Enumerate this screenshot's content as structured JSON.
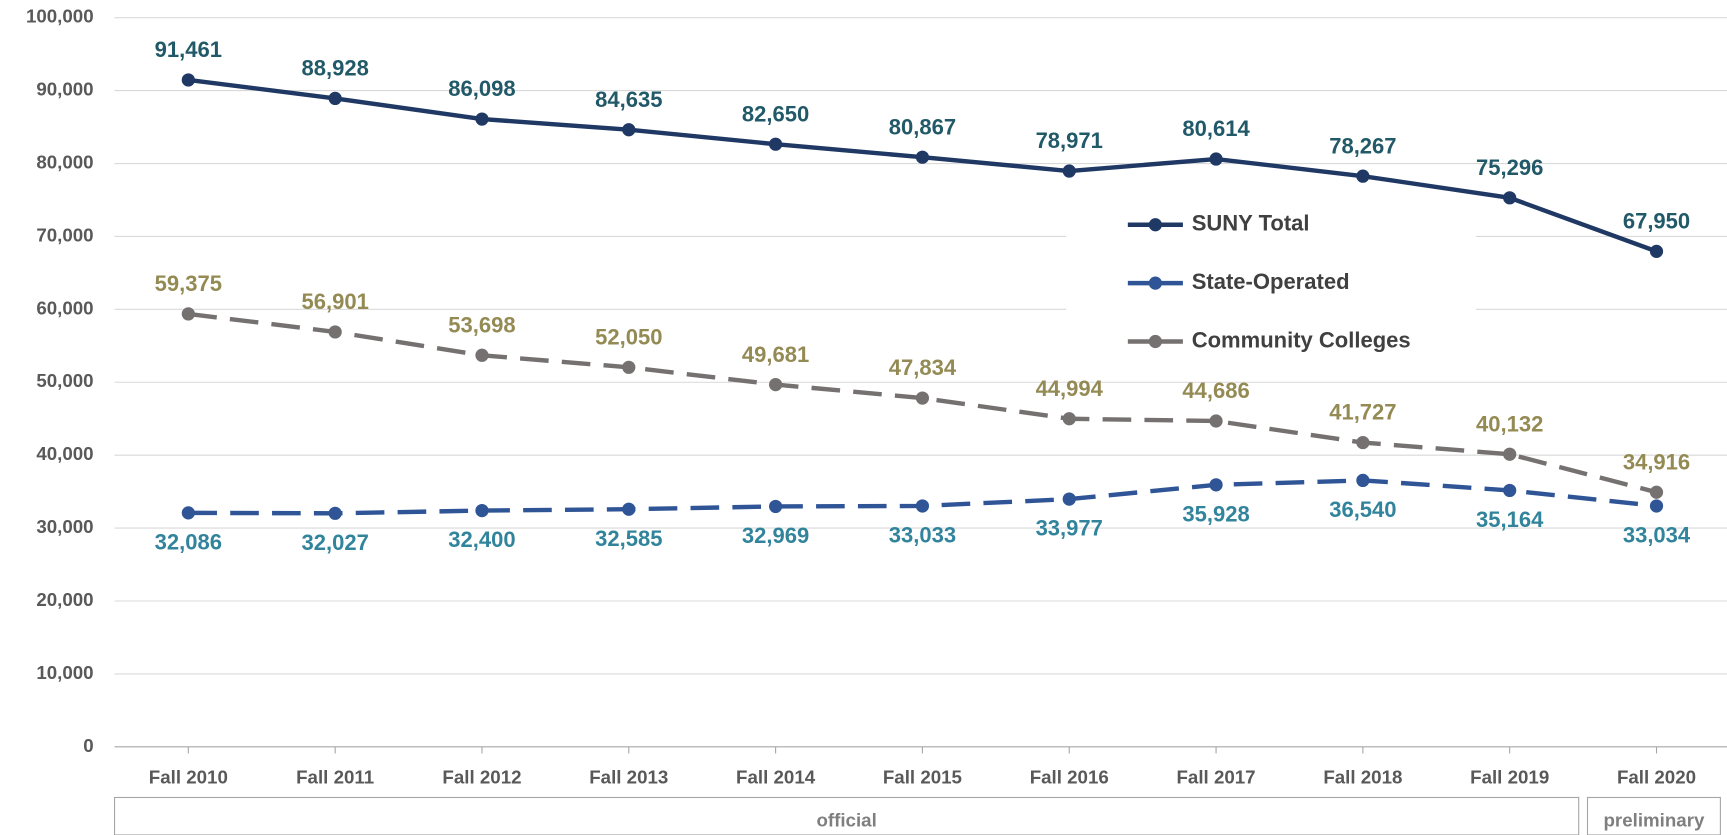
{
  "chart_data": {
    "type": "line",
    "categories": [
      "Fall 2010",
      "Fall 2011",
      "Fall 2012",
      "Fall 2013",
      "Fall 2014",
      "Fall 2015",
      "Fall 2016",
      "Fall 2017",
      "Fall 2018",
      "Fall 2019",
      "Fall 2020"
    ],
    "x_groups": [
      {
        "label": "official",
        "count": 10
      },
      {
        "label": "preliminary",
        "count": 1
      }
    ],
    "series": [
      {
        "name": "SUNY Total",
        "color": "#1f3864",
        "label_color": "#215968",
        "dash": "solid",
        "label_position": "above",
        "values": [
          91461,
          88928,
          86098,
          84635,
          82650,
          80867,
          78971,
          80614,
          78267,
          75296,
          67950
        ],
        "value_labels": [
          "91,461",
          "88,928",
          "86,098",
          "84,635",
          "82,650",
          "80,867",
          "78,971",
          "80,614",
          "78,267",
          "75,296",
          "67,950"
        ]
      },
      {
        "name": "State-Operated",
        "color": "#2f5597",
        "label_color": "#31849b",
        "dash": "dashed",
        "label_position": "below",
        "values": [
          32086,
          32027,
          32400,
          32585,
          32969,
          33033,
          33977,
          35928,
          36540,
          35164,
          33034
        ],
        "value_labels": [
          "32,086",
          "32,027",
          "32,400",
          "32,585",
          "32,969",
          "33,033",
          "33,977",
          "35,928",
          "36,540",
          "35,164",
          "33,034"
        ]
      },
      {
        "name": "Community Colleges",
        "color": "#767171",
        "label_color": "#948a54",
        "dash": "dashed",
        "label_position": "above",
        "values": [
          59375,
          56901,
          53698,
          52050,
          49681,
          47834,
          44994,
          44686,
          41727,
          40132,
          34916
        ],
        "value_labels": [
          "59,375",
          "56,901",
          "53,698",
          "52,050",
          "49,681",
          "47,834",
          "44,994",
          "44,686",
          "41,727",
          "40,132",
          "34,916"
        ]
      }
    ],
    "ylim": [
      0,
      100000
    ],
    "yticks": [
      0,
      {
        "value": 10000,
        "label": "10,000"
      },
      {
        "value": 20000,
        "label": "20,000"
      },
      {
        "value": 30000,
        "label": "30,000"
      },
      {
        "value": 40000,
        "label": "40,000"
      },
      {
        "value": 50000,
        "label": "50,000"
      },
      {
        "value": 60000,
        "label": "60,000"
      },
      {
        "value": 70000,
        "label": "70,000"
      },
      {
        "value": 80000,
        "label": "80,000"
      },
      {
        "value": 90000,
        "label": "90,000"
      },
      {
        "value": 100000,
        "label": "100,000"
      }
    ],
    "grid": true,
    "legend": "right"
  }
}
